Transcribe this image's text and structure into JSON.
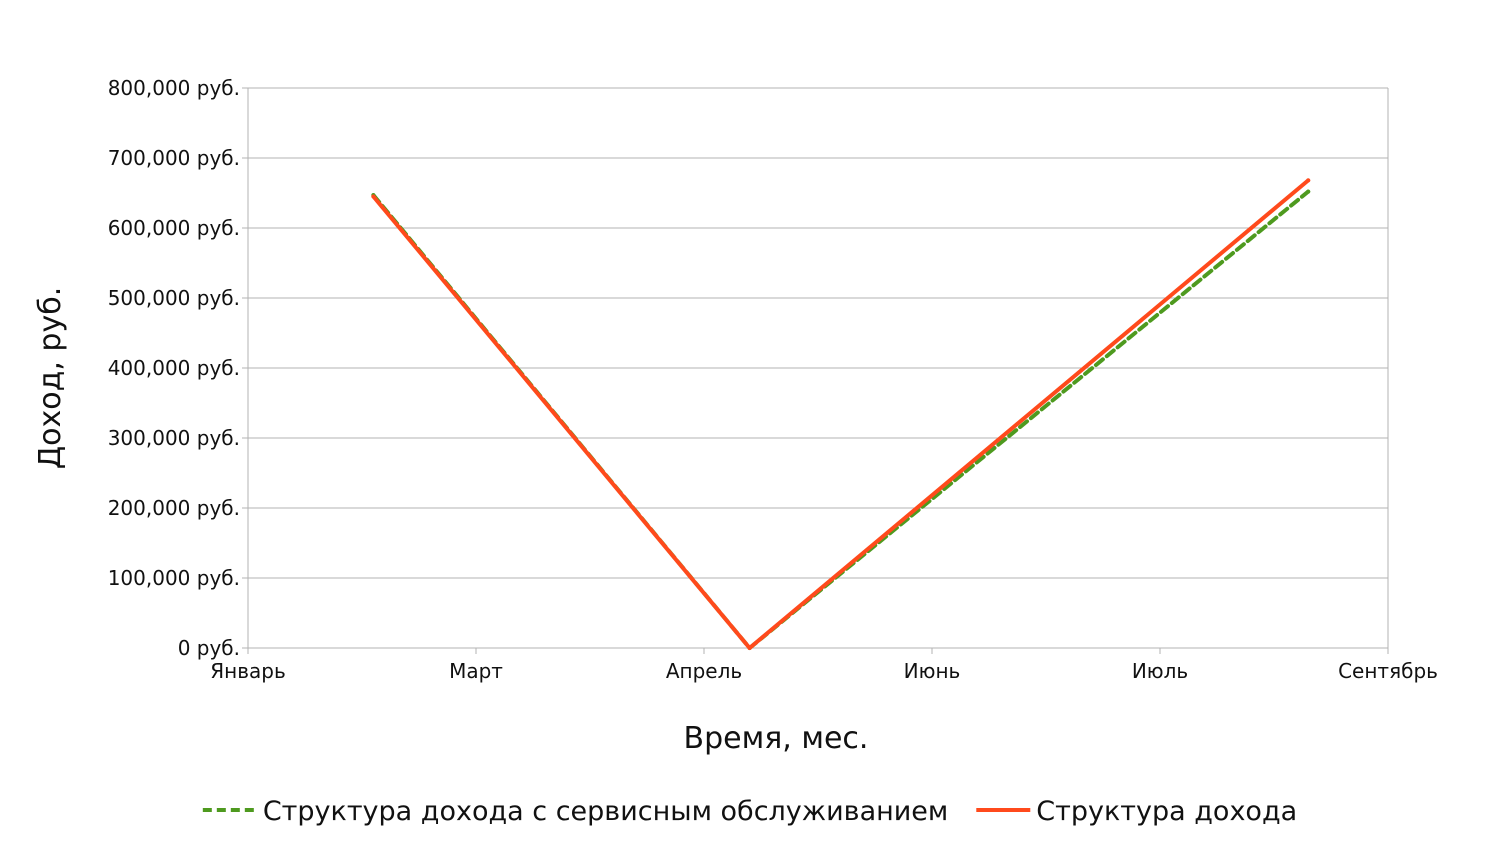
{
  "chart_data": {
    "type": "line",
    "title": "",
    "xlabel": "Время, мес.",
    "ylabel": "Доход, руб.",
    "x_tick_labels": [
      "Январь",
      "Март",
      "Апрель",
      "Июнь",
      "Июль",
      "Сентябрь"
    ],
    "y_tick_labels": [
      "0 руб.",
      "100,000 руб.",
      "200,000 руб.",
      "300,000 руб.",
      "400,000 руб.",
      "500,000 руб.",
      "600,000 руб.",
      "700,000 руб.",
      "800,000 руб."
    ],
    "ylim": [
      0,
      800000
    ],
    "grid": true,
    "legend_position": "bottom",
    "series": [
      {
        "name": "Структура дохода с сервисным обслуживанием",
        "color": "#4e9a1f",
        "dash": true,
        "points": [
          {
            "x": 0.55,
            "y": 647000
          },
          {
            "x": 2.2,
            "y": 0
          },
          {
            "x": 4.65,
            "y": 652000
          }
        ]
      },
      {
        "name": "Структура дохода",
        "color": "#ff4a1c",
        "dash": false,
        "points": [
          {
            "x": 0.55,
            "y": 645000
          },
          {
            "x": 2.2,
            "y": 0
          },
          {
            "x": 4.65,
            "y": 668000
          }
        ]
      }
    ]
  }
}
